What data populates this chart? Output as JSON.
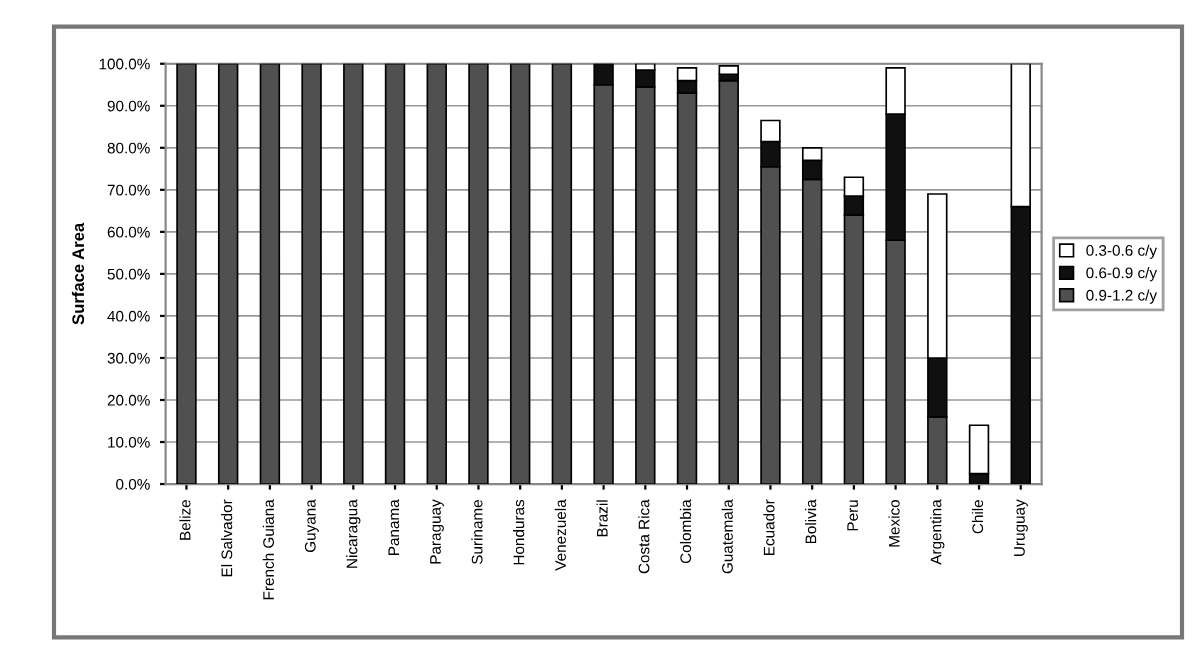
{
  "chart_data": {
    "type": "bar",
    "stacked": true,
    "ylabel": "Surface Area",
    "categories": [
      "Belize",
      "El Salvador",
      "French Guiana",
      "Guyana",
      "Nicaragua",
      "Panama",
      "Paraguay",
      "Suriname",
      "Honduras",
      "Venezuela",
      "Brazil",
      "Costa Rica",
      "Colombia",
      "Guatemala",
      "Ecuador",
      "Bolivia",
      "Peru",
      "Mexico",
      "Argentina",
      "Chile",
      "Uruguay"
    ],
    "series": [
      {
        "name": "0.9-1.2 c/y",
        "color": "#505050",
        "values": [
          100,
          100,
          100,
          100,
          100,
          100,
          100,
          100,
          100,
          100,
          95,
          94.5,
          93,
          96,
          75.5,
          72.5,
          64,
          58,
          16,
          0,
          0
        ]
      },
      {
        "name": "0.6-0.9 c/y",
        "color": "#101010",
        "values": [
          0,
          0,
          0,
          0,
          0,
          0,
          0,
          0,
          0,
          0,
          5,
          4,
          3,
          1.5,
          6,
          4.5,
          4.5,
          30,
          14,
          2.5,
          66
        ]
      },
      {
        "name": "0.3-0.6 c/y",
        "color": "#ffffff",
        "values": [
          0,
          0,
          0,
          0,
          0,
          0,
          0,
          0,
          0,
          0,
          0,
          1.5,
          3,
          2,
          5,
          3,
          4.5,
          11,
          39,
          11.5,
          34
        ]
      }
    ],
    "ylim": [
      0,
      100
    ],
    "yticks": [
      {
        "value": 0,
        "label": "0.0%"
      },
      {
        "value": 10,
        "label": "10.0%"
      },
      {
        "value": 20,
        "label": "20.0%"
      },
      {
        "value": 30,
        "label": "30.0%"
      },
      {
        "value": 40,
        "label": "40.0%"
      },
      {
        "value": 50,
        "label": "50.0%"
      },
      {
        "value": 60,
        "label": "60.0%"
      },
      {
        "value": 70,
        "label": "70.0%"
      },
      {
        "value": 80,
        "label": "80.0%"
      },
      {
        "value": 90,
        "label": "90.0%"
      },
      {
        "value": 100,
        "label": "100.0%"
      }
    ],
    "grid": "y",
    "legend": "right"
  }
}
